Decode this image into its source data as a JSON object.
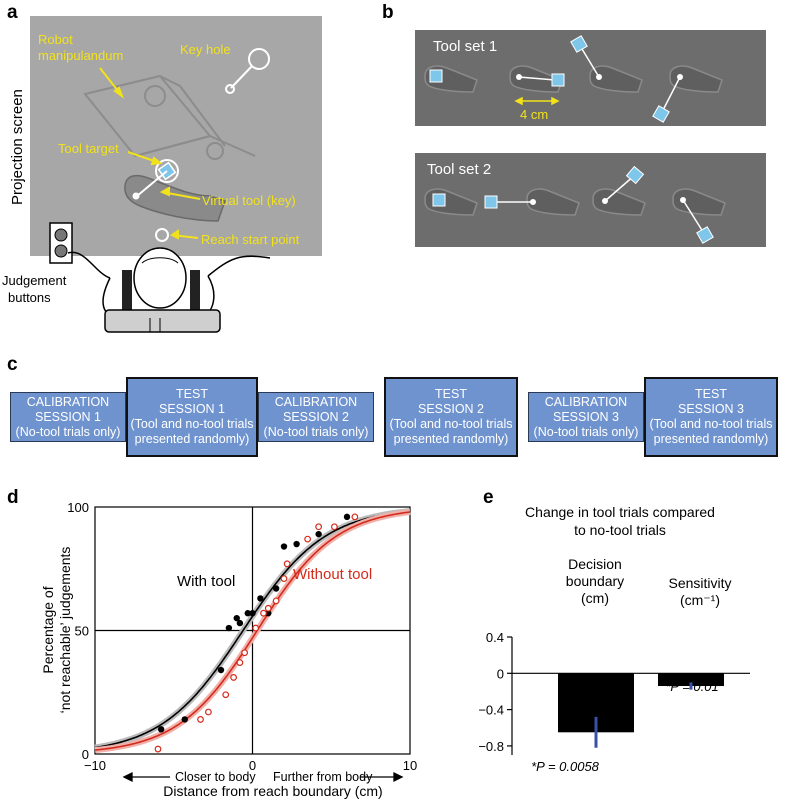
{
  "panels": {
    "a": "a",
    "b": "b",
    "c": "c",
    "d": "d",
    "e": "e"
  },
  "panel_a": {
    "side_label": "Projection screen",
    "robot": "Robot manipulandum",
    "robot_l1": "Robot",
    "robot_l2": "manipulandum",
    "key_hole": "Key hole",
    "tool_target": "Tool target",
    "virtual_tool": "Virtual tool (key)",
    "reach_start": "Reach start point",
    "judgement_l1": "Judgement",
    "judgement_l2": "buttons",
    "label_color": "#f2e21b",
    "screen_color": "#a7a7a7"
  },
  "panel_b": {
    "set1": "Tool set 1",
    "set2": "Tool set 2",
    "scale": "4 cm",
    "panel_color": "#6d6d6d",
    "square_color": "#7ec6ea"
  },
  "panel_c": {
    "sessions": [
      {
        "l1": "CALIBRATION",
        "l2": "SESSION 1",
        "l3": "(No-tool trials only)",
        "l4": ""
      },
      {
        "l1": "TEST",
        "l2": "SESSION 1",
        "l3": "(Tool and no-tool trials",
        "l4": "presented randomly)"
      },
      {
        "l1": "CALIBRATION",
        "l2": "SESSION 2",
        "l3": "(No-tool trials only)",
        "l4": ""
      },
      {
        "l1": "TEST",
        "l2": "SESSION 2",
        "l3": "(Tool and no-tool trials",
        "l4": "presented randomly)"
      },
      {
        "l1": "CALIBRATION",
        "l2": "SESSION 3",
        "l3": "(No-tool trials only)",
        "l4": ""
      },
      {
        "l1": "TEST",
        "l2": "SESSION 3",
        "l3": "(Tool and no-tool trials",
        "l4": "presented randomly)"
      }
    ]
  },
  "chart_data": [
    {
      "type": "scatter",
      "xlabel": "Distance from reach boundary (cm)",
      "ylabel_l1": "Percentage of",
      "ylabel_l2": "‘not reachable’ judgements",
      "xlim": [
        -10,
        10
      ],
      "ylim": [
        0,
        100
      ],
      "x_ticks": [
        "−10",
        "0",
        "10"
      ],
      "y_ticks": [
        "0",
        "50",
        "100"
      ],
      "annotation_left": "Closer to body",
      "annotation_right": "Further from body",
      "series": [
        {
          "name": "With tool",
          "color": "#000000",
          "boundary": -0.6,
          "slope": 2.6,
          "points": [
            [
              -5.8,
              10
            ],
            [
              -4.3,
              14
            ],
            [
              -2.0,
              34
            ],
            [
              -1.5,
              51
            ],
            [
              -1.0,
              55
            ],
            [
              -0.8,
              53
            ],
            [
              -0.3,
              57
            ],
            [
              0,
              57
            ],
            [
              0.5,
              63
            ],
            [
              1.0,
              57
            ],
            [
              1.5,
              67
            ],
            [
              2.0,
              84
            ],
            [
              2.8,
              85
            ],
            [
              4.2,
              89
            ],
            [
              6.0,
              96
            ]
          ]
        },
        {
          "name": "Without tool",
          "color": "#d42a1b",
          "boundary": 0.3,
          "slope": 2.5,
          "points": [
            [
              -6.0,
              2
            ],
            [
              -3.3,
              14
            ],
            [
              -2.8,
              17
            ],
            [
              -1.7,
              24
            ],
            [
              -1.2,
              31
            ],
            [
              -0.8,
              37
            ],
            [
              -0.5,
              41
            ],
            [
              0.2,
              51
            ],
            [
              0.7,
              57
            ],
            [
              1.0,
              59
            ],
            [
              1.5,
              62
            ],
            [
              2.0,
              71
            ],
            [
              2.2,
              77
            ],
            [
              3.5,
              87
            ],
            [
              4.2,
              92
            ],
            [
              5.2,
              92
            ],
            [
              6.5,
              96
            ]
          ]
        }
      ]
    },
    {
      "type": "bar",
      "title_l1": "Change in tool trials compared",
      "title_l2": "to no-tool trials",
      "categories": [
        "Decision boundary (cm)",
        "Sensitivity (cm⁻¹)"
      ],
      "cat1_l1": "Decision",
      "cat1_l2": "boundary",
      "cat1_l3": "(cm)",
      "cat2_l1": "Sensitivity",
      "cat2_l2": "(cm⁻¹)",
      "values": [
        -0.65,
        -0.14
      ],
      "error_low": [
        -0.82,
        -0.18
      ],
      "error_high": [
        -0.48,
        -0.1
      ],
      "ylim": [
        -0.9,
        0.4
      ],
      "y_ticks": [
        "0.4",
        "0",
        "−0.4",
        "−0.8"
      ],
      "p_labels": [
        "*P = 0.0058",
        "*P = 0.01"
      ],
      "bar_color": "#000000",
      "error_color": "#3a4fa8"
    }
  ]
}
